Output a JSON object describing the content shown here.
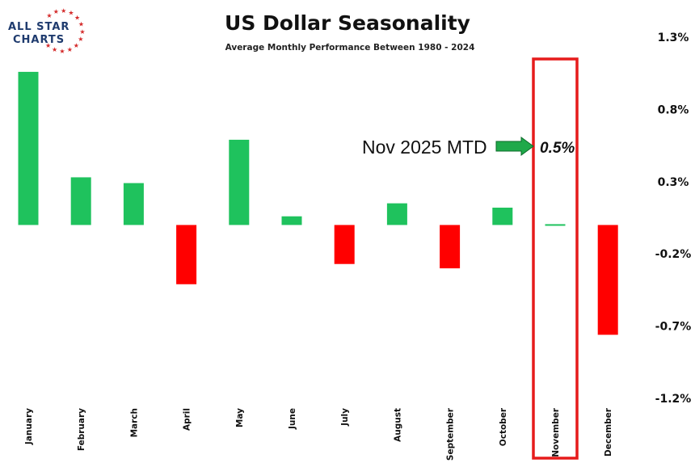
{
  "chart_data": {
    "type": "bar",
    "title": "US Dollar Seasonality",
    "subtitle": "Average Monthly Performance Between 1980 - 2024",
    "categories": [
      "January",
      "February",
      "March",
      "April",
      "May",
      "June",
      "July",
      "August",
      "September",
      "October",
      "November",
      "December"
    ],
    "values": [
      1.06,
      0.33,
      0.29,
      -0.41,
      0.59,
      0.06,
      -0.27,
      0.15,
      -0.3,
      0.12,
      0.01,
      -0.76
    ],
    "yticks": [
      1.3,
      0.8,
      0.3,
      -0.2,
      -0.7,
      -1.2
    ],
    "ytick_labels": [
      "1.3%",
      "0.8%",
      "0.3%",
      "-0.2%",
      "-0.7%",
      "-1.2%"
    ],
    "ylim": [
      -1.2,
      1.3
    ],
    "axis_side": "right",
    "grid": false,
    "colors": {
      "positive": "#1fc25d",
      "negative": "#ff0000",
      "highlight_box": "#e61b1b",
      "arrow": "#1fa94a"
    },
    "highlight": {
      "category": "November"
    },
    "annotation": {
      "label": "Nov 2025 MTD",
      "value_text": "0.5%"
    }
  },
  "logo": {
    "line1": "ALL STAR",
    "line2": "CHARTS"
  }
}
